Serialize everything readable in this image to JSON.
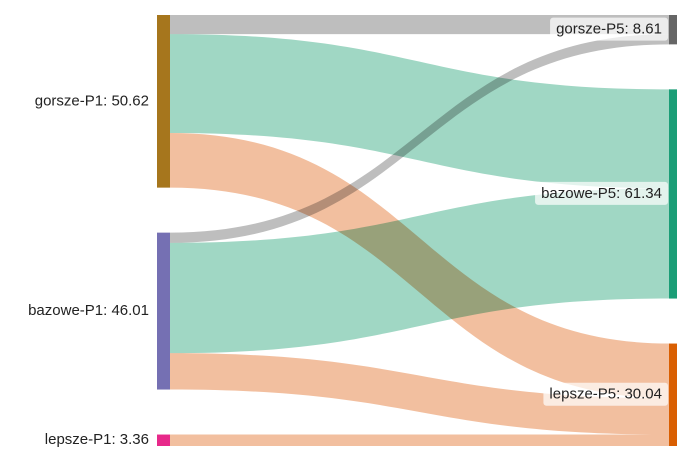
{
  "chart_data": {
    "type": "sankey",
    "title": "",
    "nodes": [
      {
        "id": "gorsze-P1",
        "value": 50.62,
        "label": "gorsze-P1: 50.62",
        "color": "#A6761D",
        "side": "left"
      },
      {
        "id": "bazowe-P1",
        "value": 46.01,
        "label": "bazowe-P1: 46.01",
        "color": "#7570B3",
        "side": "left"
      },
      {
        "id": "lepsze-P1",
        "value": 3.36,
        "label": "lepsze-P1: 3.36",
        "color": "#E7298A",
        "side": "left"
      },
      {
        "id": "gorsze-P5",
        "value": 8.61,
        "label": "gorsze-P5: 8.61",
        "color": "#666666",
        "side": "right"
      },
      {
        "id": "bazowe-P5",
        "value": 61.34,
        "label": "bazowe-P5: 61.34",
        "color": "#1B9E77",
        "side": "right"
      },
      {
        "id": "lepsze-P5",
        "value": 30.04,
        "label": "lepsze-P5: 30.04",
        "color": "#D95F02",
        "side": "right"
      }
    ],
    "links": [
      {
        "source": "gorsze-P1",
        "target": "gorsze-P5",
        "value": 5.6,
        "color": "#B3B3B3"
      },
      {
        "source": "gorsze-P1",
        "target": "bazowe-P5",
        "value": 29.0,
        "color": "#8FD0BA"
      },
      {
        "source": "gorsze-P1",
        "target": "lepsze-P5",
        "value": 16.02,
        "color": "#F0B48E"
      },
      {
        "source": "bazowe-P1",
        "target": "gorsze-P5",
        "value": 3.01,
        "color": "#B3B3B3"
      },
      {
        "source": "bazowe-P1",
        "target": "bazowe-P5",
        "value": 32.34,
        "color": "#8FD0BA"
      },
      {
        "source": "bazowe-P1",
        "target": "lepsze-P5",
        "value": 10.66,
        "color": "#F0B48E"
      },
      {
        "source": "lepsze-P1",
        "target": "lepsze-P5",
        "value": 3.36,
        "color": "#F0B48E"
      }
    ]
  }
}
